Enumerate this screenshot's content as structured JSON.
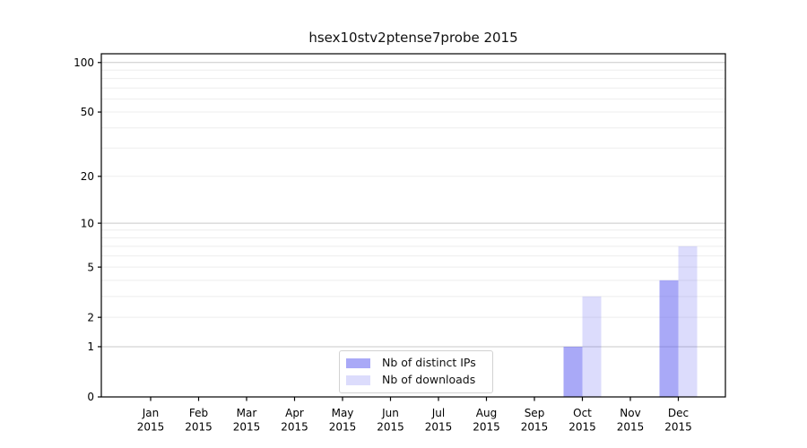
{
  "figure_title": "hsex10stv2ptense7probe 2015",
  "chart_data": {
    "type": "bar",
    "title": "hsex10stv2ptense7probe 2015",
    "categories": [
      "Jan 2015",
      "Feb 2015",
      "Mar 2015",
      "Apr 2015",
      "May 2015",
      "Jun 2015",
      "Jul 2015",
      "Aug 2015",
      "Sep 2015",
      "Oct 2015",
      "Nov 2015",
      "Dec 2015"
    ],
    "series": [
      {
        "name": "Nb of distinct IPs",
        "values": [
          0,
          0,
          0,
          0,
          0,
          0,
          0,
          0,
          0,
          1,
          0,
          4
        ],
        "color": "#5a5af0",
        "fill_alpha": 0.52
      },
      {
        "name": "Nb of downloads",
        "values": [
          0,
          0,
          0,
          0,
          0,
          0,
          0,
          0,
          0,
          3,
          0,
          7
        ],
        "color": "#5a5af0",
        "fill_alpha": 0.21
      }
    ],
    "yscale": "log1p",
    "ylim": [
      0,
      113
    ],
    "yticks": [
      0,
      1,
      2,
      5,
      10,
      20,
      50,
      100
    ],
    "gridlines_major": [
      1,
      10,
      100
    ],
    "gridlines_minor": [
      2,
      3,
      4,
      5,
      6,
      7,
      8,
      9,
      20,
      30,
      40,
      50,
      60,
      70,
      80,
      90
    ],
    "grid": true,
    "legend_position": "lower center"
  },
  "colors": {
    "bar_dark_on_white": "#a9a9f7",
    "bar_light_on_white": "#dcdcf9",
    "grid_major": "#c9c9c9",
    "grid_minor": "#ededed",
    "spine": "#000000",
    "tick_text": "#000000",
    "legend_border": "#d2d2d2"
  }
}
